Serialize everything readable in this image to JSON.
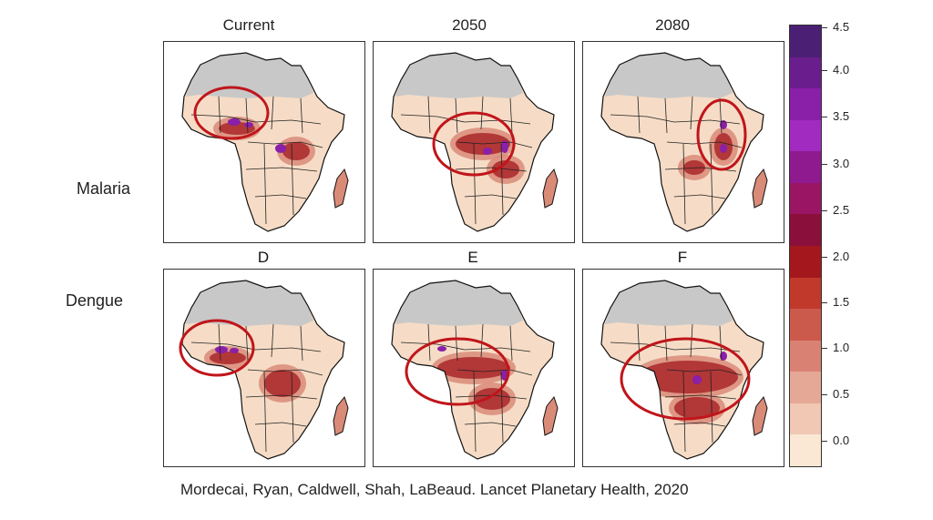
{
  "columns": [
    "Current",
    "2050",
    "2080"
  ],
  "rows": [
    "Malaria",
    "Dengue"
  ],
  "panel_letters": [
    "D",
    "E",
    "F"
  ],
  "legend": {
    "ticks": [
      "4.5",
      "4.0",
      "3.5",
      "3.0",
      "2.5",
      "2.0",
      "1.5",
      "1.0",
      "0.5",
      "0.0"
    ],
    "colors": [
      "#4b1f74",
      "#6a1d8c",
      "#8a1fa8",
      "#a12bc0",
      "#8f1a8f",
      "#9b1565",
      "#8a0f3a",
      "#a3171d",
      "#c0392b",
      "#cc5a4c",
      "#d98273",
      "#e6a896",
      "#f0c8b4",
      "#fae8d4"
    ]
  },
  "colors": {
    "circle": "#c0151b",
    "unsuitable": "#c8c8c8",
    "land_low": "#f6dcc6",
    "land_mid": "#d98b78",
    "land_high": "#a3171d",
    "hotspot": "#8a1fa8"
  },
  "caption": "Mordecai, Ryan, Caldwell, Shah, LaBeaud. Lancet Planetary Health, 2020"
}
